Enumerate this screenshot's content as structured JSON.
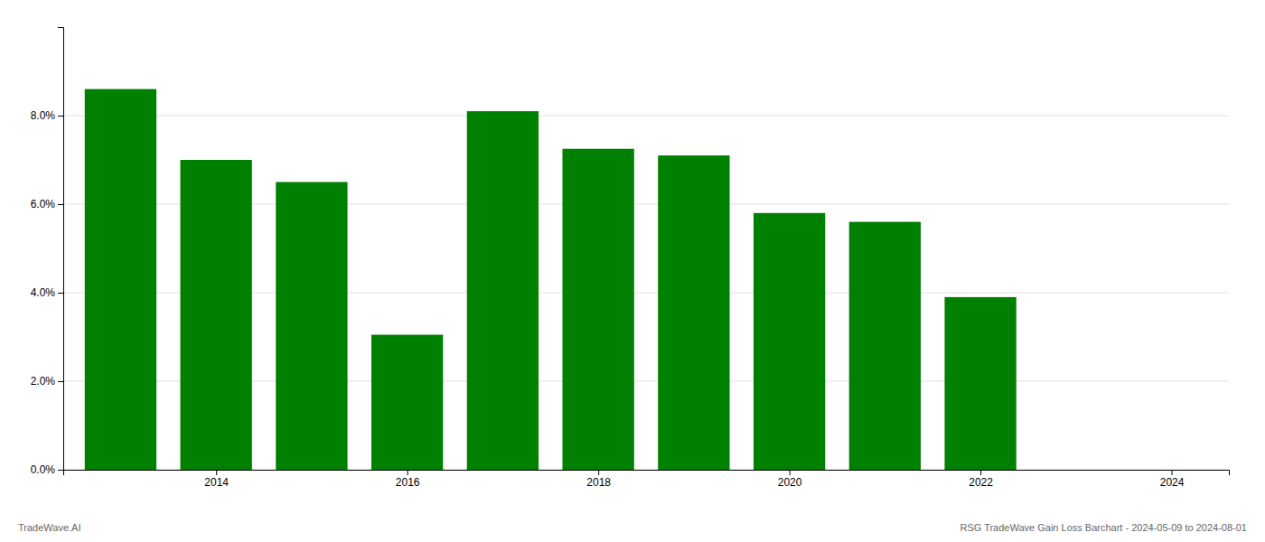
{
  "chart_data": {
    "type": "bar",
    "x": [
      2013,
      2014,
      2015,
      2016,
      2017,
      2018,
      2019,
      2020,
      2021,
      2022
    ],
    "values": [
      0.086,
      0.07,
      0.065,
      0.0305,
      0.081,
      0.0725,
      0.071,
      0.058,
      0.056,
      0.039
    ],
    "color": "#008000",
    "xlim": [
      2012.4,
      2024.6
    ],
    "xticks": [
      2014,
      2016,
      2018,
      2020,
      2022,
      2024
    ],
    "ylim": [
      0,
      0.1
    ],
    "yticks": [
      {
        "value": 0.0,
        "label": "0.0%"
      },
      {
        "value": 0.02,
        "label": "2.0%"
      },
      {
        "value": 0.04,
        "label": "4.0%"
      },
      {
        "value": 0.06,
        "label": "6.0%"
      },
      {
        "value": 0.08,
        "label": "8.0%"
      }
    ],
    "grid": true,
    "annotations": [
      "TradeWave.AI",
      "RSG TradeWave Gain Loss Barchart - 2024-05-09 to 2024-08-01"
    ]
  }
}
